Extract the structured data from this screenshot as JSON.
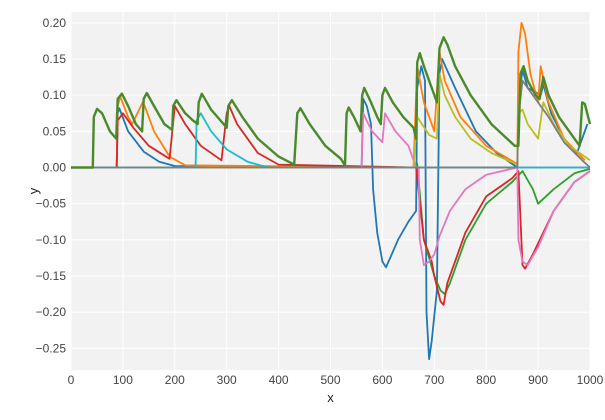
{
  "chart_data": {
    "type": "line",
    "title": "",
    "xlabel": "x",
    "ylabel": "y",
    "xlim": [
      0,
      1000
    ],
    "ylim": [
      -0.28,
      0.215
    ],
    "x_ticks": [
      0,
      100,
      200,
      300,
      400,
      500,
      600,
      700,
      800,
      900,
      1000
    ],
    "x_tick_labels": [
      "0",
      "100",
      "200",
      "300",
      "400",
      "500",
      "600",
      "700",
      "800",
      "900",
      "1000"
    ],
    "y_ticks": [
      0.2,
      0.15,
      0.1,
      0.05,
      0.0,
      -0.05,
      -0.1,
      -0.15,
      -0.2,
      -0.25
    ],
    "y_tick_labels": [
      "0.20",
      "0.15",
      "0.10",
      "0.05",
      "0.00",
      "−0.05",
      "−0.10",
      "−0.15",
      "−0.20",
      "−0.25"
    ],
    "grid": true,
    "legend": "none",
    "background": "#f2f2f2",
    "grid_color": "#ffffff",
    "series": [
      {
        "color": "#1f77b4",
        "points": [
          [
            0,
            0
          ],
          [
            88,
            0
          ],
          [
            90,
            0.075
          ],
          [
            93,
            0.082
          ],
          [
            110,
            0.05
          ],
          [
            140,
            0.022
          ],
          [
            170,
            0.008
          ],
          [
            200,
            0.002
          ],
          [
            560,
            0.0
          ],
          [
            563,
            0.095
          ],
          [
            570,
            0.085
          ],
          [
            578,
            0.06
          ],
          [
            582,
            -0.03
          ],
          [
            590,
            -0.09
          ],
          [
            600,
            -0.13
          ],
          [
            607,
            -0.138
          ],
          [
            615,
            -0.125
          ],
          [
            630,
            -0.1
          ],
          [
            650,
            -0.075
          ],
          [
            665,
            -0.06
          ],
          [
            667,
            0.11
          ],
          [
            675,
            0.14
          ],
          [
            682,
            0.12
          ],
          [
            685,
            -0.2
          ],
          [
            690,
            -0.265
          ],
          [
            695,
            -0.24
          ],
          [
            705,
            -0.17
          ],
          [
            710,
            0.13
          ],
          [
            715,
            0.15
          ],
          [
            740,
            0.11
          ],
          [
            780,
            0.05
          ],
          [
            820,
            0.02
          ],
          [
            860,
            0.0
          ],
          [
            862,
            0.09
          ],
          [
            870,
            0.135
          ],
          [
            880,
            0.11
          ],
          [
            905,
            0.1
          ],
          [
            910,
            0.115
          ],
          [
            925,
            0.075
          ],
          [
            950,
            0.04
          ],
          [
            975,
            0.02
          ],
          [
            995,
            0.06
          ]
        ]
      },
      {
        "color": "#ff7f0e",
        "points": [
          [
            0,
            0
          ],
          [
            88,
            0
          ],
          [
            90,
            0.085
          ],
          [
            95,
            0.098
          ],
          [
            110,
            0.07
          ],
          [
            118,
            0.06
          ],
          [
            138,
            0.09
          ],
          [
            142,
            0.085
          ],
          [
            160,
            0.05
          ],
          [
            190,
            0.015
          ],
          [
            220,
            0.003
          ],
          [
            660,
            0.0
          ],
          [
            667,
            0.14
          ],
          [
            680,
            0.09
          ],
          [
            700,
            0.05
          ],
          [
            710,
            0.16
          ],
          [
            720,
            0.12
          ],
          [
            750,
            0.07
          ],
          [
            800,
            0.03
          ],
          [
            860,
            0.005
          ],
          [
            862,
            0.16
          ],
          [
            868,
            0.2
          ],
          [
            875,
            0.185
          ],
          [
            885,
            0.13
          ],
          [
            900,
            0.09
          ],
          [
            905,
            0.14
          ],
          [
            920,
            0.09
          ],
          [
            950,
            0.04
          ],
          [
            990,
            0.01
          ]
        ]
      },
      {
        "color": "#2ca02c",
        "points": [
          [
            0,
            0
          ],
          [
            665,
            0
          ],
          [
            667,
            0.005
          ],
          [
            680,
            -0.1
          ],
          [
            700,
            -0.15
          ],
          [
            712,
            -0.17
          ],
          [
            720,
            -0.175
          ],
          [
            730,
            -0.16
          ],
          [
            760,
            -0.1
          ],
          [
            800,
            -0.05
          ],
          [
            850,
            -0.02
          ],
          [
            870,
            -0.005
          ],
          [
            890,
            -0.03
          ],
          [
            900,
            -0.05
          ],
          [
            930,
            -0.03
          ],
          [
            970,
            -0.008
          ],
          [
            1000,
            -0.002
          ]
        ]
      },
      {
        "color": "#d62728",
        "points": [
          [
            0,
            0
          ],
          [
            88,
            0
          ],
          [
            90,
            0.065
          ],
          [
            100,
            0.075
          ],
          [
            120,
            0.055
          ],
          [
            150,
            0.03
          ],
          [
            190,
            0.012
          ],
          [
            200,
            0.085
          ],
          [
            220,
            0.06
          ],
          [
            250,
            0.03
          ],
          [
            290,
            0.01
          ],
          [
            300,
            0.075
          ],
          [
            305,
            0.085
          ],
          [
            320,
            0.06
          ],
          [
            360,
            0.02
          ],
          [
            400,
            0.004
          ],
          [
            665,
            0.0
          ],
          [
            680,
            -0.1
          ],
          [
            695,
            -0.13
          ],
          [
            700,
            -0.15
          ],
          [
            712,
            -0.185
          ],
          [
            718,
            -0.19
          ],
          [
            725,
            -0.16
          ],
          [
            760,
            -0.09
          ],
          [
            800,
            -0.04
          ],
          [
            850,
            -0.015
          ],
          [
            862,
            -0.005
          ],
          [
            870,
            -0.135
          ],
          [
            875,
            -0.14
          ],
          [
            890,
            -0.12
          ],
          [
            930,
            -0.06
          ],
          [
            970,
            -0.02
          ],
          [
            1000,
            -0.005
          ]
        ]
      },
      {
        "color": "#9467bd",
        "points": [
          [
            0,
            0
          ],
          [
            1000,
            0
          ]
        ]
      },
      {
        "color": "#e377c2",
        "points": [
          [
            0,
            0
          ],
          [
            560,
            0
          ],
          [
            563,
            0.075
          ],
          [
            580,
            0.05
          ],
          [
            600,
            0.035
          ],
          [
            605,
            0.075
          ],
          [
            625,
            0.05
          ],
          [
            650,
            0.03
          ],
          [
            665,
            0.0
          ],
          [
            670,
            0.0
          ],
          [
            672,
            -0.1
          ],
          [
            680,
            -0.135
          ],
          [
            690,
            -0.13
          ],
          [
            700,
            -0.12
          ],
          [
            710,
            -0.095
          ],
          [
            730,
            -0.06
          ],
          [
            760,
            -0.03
          ],
          [
            800,
            -0.01
          ],
          [
            860,
            0.0
          ],
          [
            862,
            -0.1
          ],
          [
            870,
            -0.13
          ],
          [
            880,
            -0.135
          ],
          [
            900,
            -0.11
          ],
          [
            930,
            -0.06
          ],
          [
            970,
            -0.02
          ],
          [
            1000,
            -0.005
          ]
        ]
      },
      {
        "color": "#bcbd22",
        "points": [
          [
            0,
            0
          ],
          [
            660,
            0
          ],
          [
            667,
            0.07
          ],
          [
            690,
            0.045
          ],
          [
            705,
            0.04
          ],
          [
            710,
            0.13
          ],
          [
            720,
            0.1
          ],
          [
            740,
            0.07
          ],
          [
            770,
            0.04
          ],
          [
            810,
            0.02
          ],
          [
            860,
            0.004
          ],
          [
            862,
            0.075
          ],
          [
            870,
            0.08
          ],
          [
            880,
            0.06
          ],
          [
            900,
            0.04
          ],
          [
            910,
            0.09
          ],
          [
            930,
            0.06
          ],
          [
            960,
            0.03
          ],
          [
            1000,
            0.01
          ]
        ]
      },
      {
        "color": "#17becf",
        "points": [
          [
            0,
            0
          ],
          [
            240,
            0
          ],
          [
            242,
            0.065
          ],
          [
            250,
            0.075
          ],
          [
            270,
            0.05
          ],
          [
            300,
            0.025
          ],
          [
            340,
            0.008
          ],
          [
            380,
            0.0
          ],
          [
            1000,
            0
          ]
        ]
      },
      {
        "color": "#7f7f7f",
        "points": [
          [
            0,
            0
          ],
          [
            860,
            0
          ],
          [
            862,
            0.07
          ],
          [
            870,
            0.12
          ],
          [
            890,
            0.1
          ],
          [
            920,
            0.07
          ],
          [
            950,
            0.035
          ],
          [
            985,
            0.01
          ],
          [
            1000,
            0.0
          ]
        ]
      },
      {
        "color": "#4a8a2a",
        "points": [
          [
            0,
            0
          ],
          [
            42,
            0
          ],
          [
            44,
            0.07
          ],
          [
            50,
            0.081
          ],
          [
            60,
            0.075
          ],
          [
            75,
            0.05
          ],
          [
            87,
            0.04
          ],
          [
            90,
            0.095
          ],
          [
            98,
            0.102
          ],
          [
            110,
            0.085
          ],
          [
            125,
            0.06
          ],
          [
            137,
            0.05
          ],
          [
            140,
            0.095
          ],
          [
            146,
            0.103
          ],
          [
            160,
            0.085
          ],
          [
            180,
            0.06
          ],
          [
            195,
            0.052
          ],
          [
            197,
            0.085
          ],
          [
            203,
            0.093
          ],
          [
            220,
            0.075
          ],
          [
            235,
            0.065
          ],
          [
            244,
            0.06
          ],
          [
            246,
            0.09
          ],
          [
            252,
            0.102
          ],
          [
            270,
            0.08
          ],
          [
            300,
            0.055
          ],
          [
            303,
            0.085
          ],
          [
            310,
            0.093
          ],
          [
            330,
            0.07
          ],
          [
            360,
            0.04
          ],
          [
            400,
            0.015
          ],
          [
            430,
            0.004
          ],
          [
            436,
            0.075
          ],
          [
            442,
            0.082
          ],
          [
            460,
            0.06
          ],
          [
            490,
            0.03
          ],
          [
            520,
            0.012
          ],
          [
            528,
            0.003
          ],
          [
            531,
            0.075
          ],
          [
            535,
            0.083
          ],
          [
            545,
            0.07
          ],
          [
            558,
            0.05
          ],
          [
            561,
            0.1
          ],
          [
            565,
            0.11
          ],
          [
            578,
            0.09
          ],
          [
            590,
            0.07
          ],
          [
            597,
            0.06
          ],
          [
            600,
            0.1
          ],
          [
            605,
            0.11
          ],
          [
            620,
            0.09
          ],
          [
            640,
            0.07
          ],
          [
            660,
            0.055
          ],
          [
            665,
            0.04
          ],
          [
            667,
            0.145
          ],
          [
            672,
            0.158
          ],
          [
            680,
            0.14
          ],
          [
            695,
            0.11
          ],
          [
            705,
            0.09
          ],
          [
            710,
            0.165
          ],
          [
            718,
            0.18
          ],
          [
            725,
            0.17
          ],
          [
            740,
            0.14
          ],
          [
            770,
            0.1
          ],
          [
            810,
            0.06
          ],
          [
            855,
            0.03
          ],
          [
            862,
            0.03
          ],
          [
            866,
            0.13
          ],
          [
            872,
            0.14
          ],
          [
            880,
            0.12
          ],
          [
            895,
            0.1
          ],
          [
            903,
            0.095
          ],
          [
            910,
            0.125
          ],
          [
            920,
            0.1
          ],
          [
            940,
            0.07
          ],
          [
            970,
            0.04
          ],
          [
            980,
            0.03
          ],
          [
            985,
            0.09
          ],
          [
            990,
            0.088
          ],
          [
            1000,
            0.06
          ]
        ]
      }
    ]
  }
}
